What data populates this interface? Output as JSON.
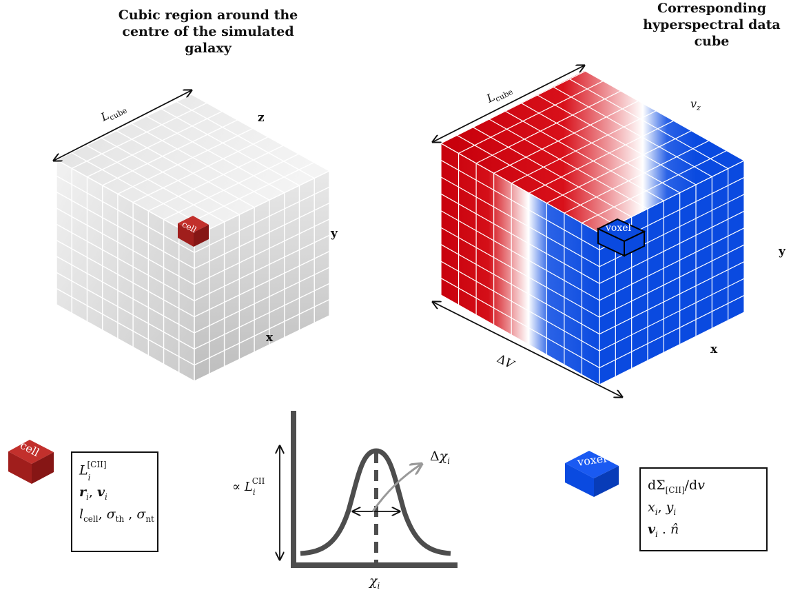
{
  "left_panel": {
    "title": "Cubic region around the centre of the simulated galaxy",
    "axes": {
      "z": "z",
      "y": "y",
      "x": "x"
    },
    "edge_label": "L_cube",
    "cell_label": "cell",
    "grid": "9 x 9 x 9"
  },
  "right_panel": {
    "title": "Corresponding hyperspectral data cube",
    "axes": {
      "vz": "v_z",
      "y": "y",
      "x": "x"
    },
    "edge_label": "L_cube",
    "depth_label": "ΔV",
    "voxel_label": "voxel",
    "colors": {
      "red": "#c8000c",
      "white": "#ffffff",
      "blue": "#0a4ae0"
    }
  },
  "cell_legend": {
    "icon_label": "cell",
    "line1": "L_i^[CII]",
    "line2": "r_i, v_i",
    "line3": "l_cell, σ_th , σ_nt"
  },
  "voxel_legend": {
    "icon_label": "voxel",
    "line1": "dΣ_[CII]/dv",
    "line2": "x_i, y_i",
    "line3": "v_i . n̂"
  },
  "profile": {
    "ylabel": "∝ L_i^CII",
    "xlabel": "χ_i",
    "width_label": "Δχ_i"
  },
  "colors": {
    "cell": "#a01e1c",
    "voxel": "#0a4ae0",
    "axis": "#4d4d4d"
  }
}
